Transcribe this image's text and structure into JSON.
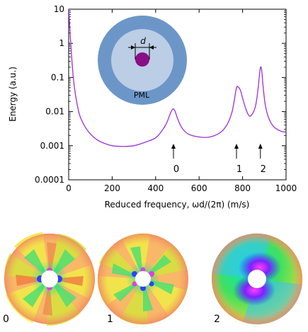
{
  "chart_data": {
    "type": "line",
    "xlabel": "Reduced frequency, ωd/(2π) (m/s)",
    "ylabel": "Energy (a.u.)",
    "xlim": [
      0,
      1000
    ],
    "ylim": [
      0.0001,
      10
    ],
    "yscale": "log",
    "x_ticks": [
      "0",
      "200",
      "400",
      "600",
      "800",
      "1000"
    ],
    "y_ticks": [
      "10",
      "1",
      "0.1",
      "0.01",
      "0.001",
      "0.0001"
    ],
    "grid": false,
    "series": [
      {
        "color": "#9b30d9",
        "x": [
          0,
          5,
          10,
          20,
          30,
          40,
          50,
          60,
          80,
          100,
          130,
          160,
          200,
          250,
          300,
          350,
          400,
          430,
          450,
          465,
          475,
          482,
          490,
          500,
          520,
          550,
          600,
          650,
          700,
          730,
          750,
          760,
          772,
          780,
          790,
          800,
          815,
          830,
          845,
          860,
          870,
          880,
          885,
          890,
          895,
          905,
          920,
          940,
          960,
          980,
          1000
        ],
        "y": [
          10,
          3,
          0.9,
          0.12,
          0.035,
          0.015,
          0.008,
          0.0055,
          0.0032,
          0.0022,
          0.0015,
          0.0012,
          0.001,
          0.00095,
          0.001,
          0.00125,
          0.0017,
          0.0028,
          0.0045,
          0.008,
          0.011,
          0.012,
          0.01,
          0.0065,
          0.0034,
          0.0022,
          0.0018,
          0.0018,
          0.0025,
          0.0043,
          0.009,
          0.018,
          0.05,
          0.052,
          0.042,
          0.025,
          0.012,
          0.0075,
          0.0085,
          0.015,
          0.04,
          0.16,
          0.2,
          0.12,
          0.05,
          0.015,
          0.0065,
          0.0038,
          0.003,
          0.0026,
          0.0025
        ]
      }
    ],
    "annotations": [
      {
        "text": "0",
        "x": 482
      },
      {
        "text": "1",
        "x": 772
      },
      {
        "text": "2",
        "x": 882
      }
    ]
  },
  "inset": {
    "outer_color": "#6d96c8",
    "inner_color": "#bccde6",
    "core_color": "#8a0f86",
    "d_label": "d",
    "pml_label": "PML"
  },
  "panels": [
    {
      "label": "0",
      "mode": "quadrupole"
    },
    {
      "label": "1",
      "mode": "hexapole"
    },
    {
      "label": "2",
      "mode": "dipole"
    }
  ]
}
